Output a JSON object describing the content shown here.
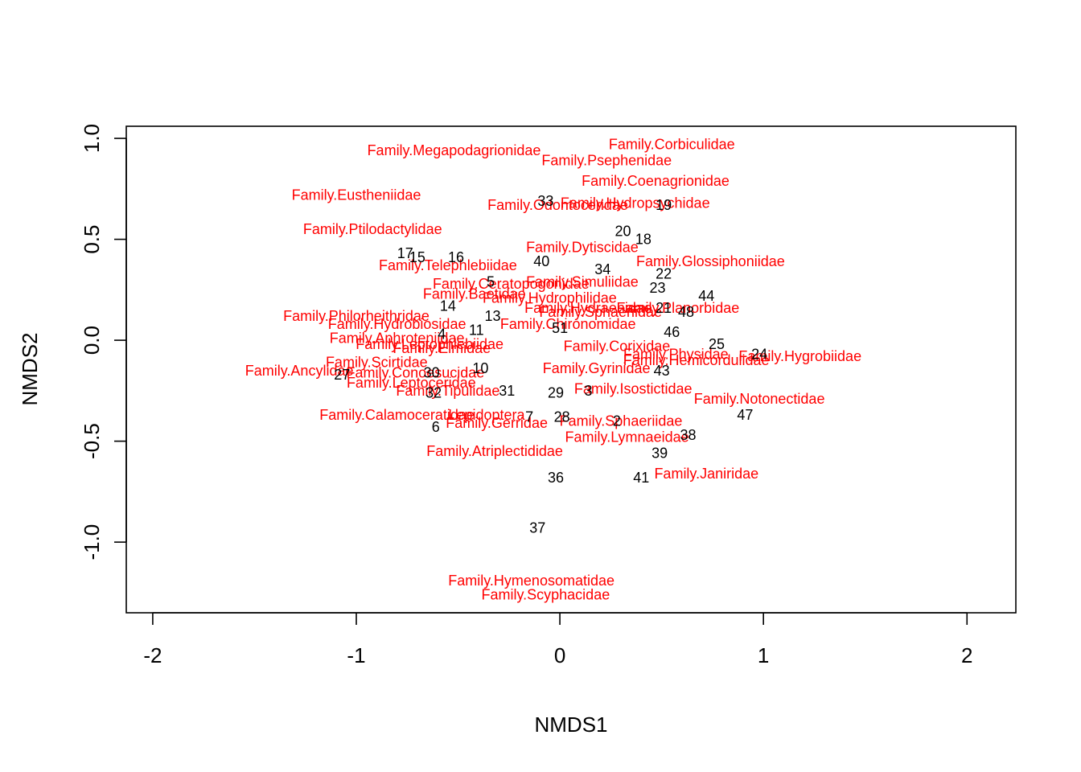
{
  "chart_data": {
    "type": "scatter",
    "title": "",
    "xlabel": "NMDS1",
    "ylabel": "NMDS2",
    "xlim": [
      -2.13,
      2.24
    ],
    "ylim": [
      -1.35,
      1.06
    ],
    "x_ticks": [
      -2,
      -1,
      0,
      1,
      2
    ],
    "y_ticks": [
      -1.0,
      -0.5,
      0.0,
      0.5,
      1.0
    ],
    "x_tick_labels": [
      "-2",
      "-1",
      "0",
      "1",
      "2"
    ],
    "y_tick_labels": [
      "-1.0",
      "-0.5",
      "0.0",
      "0.5",
      "1.0"
    ],
    "grid": false,
    "legend": "none",
    "species_color": "#ff0000",
    "site_color": "#000000",
    "sites": [
      {
        "label": "33",
        "x": -0.07,
        "y": 0.69
      },
      {
        "label": "19",
        "x": 0.51,
        "y": 0.67
      },
      {
        "label": "20",
        "x": 0.31,
        "y": 0.54
      },
      {
        "label": "18",
        "x": 0.41,
        "y": 0.5
      },
      {
        "label": "17",
        "x": -0.76,
        "y": 0.43
      },
      {
        "label": "15",
        "x": -0.7,
        "y": 0.41
      },
      {
        "label": "16",
        "x": -0.51,
        "y": 0.41
      },
      {
        "label": "40",
        "x": -0.09,
        "y": 0.39
      },
      {
        "label": "34",
        "x": 0.21,
        "y": 0.35
      },
      {
        "label": "22",
        "x": 0.51,
        "y": 0.33
      },
      {
        "label": "5",
        "x": -0.34,
        "y": 0.29
      },
      {
        "label": "23",
        "x": 0.48,
        "y": 0.26
      },
      {
        "label": "44",
        "x": 0.72,
        "y": 0.22
      },
      {
        "label": "14",
        "x": -0.55,
        "y": 0.17
      },
      {
        "label": "21",
        "x": 0.51,
        "y": 0.16
      },
      {
        "label": "48",
        "x": 0.62,
        "y": 0.14
      },
      {
        "label": "13",
        "x": -0.33,
        "y": 0.12
      },
      {
        "label": "51",
        "x": 0.0,
        "y": 0.06
      },
      {
        "label": "11",
        "x": -0.41,
        "y": 0.05
      },
      {
        "label": "46",
        "x": 0.55,
        "y": 0.04
      },
      {
        "label": "4",
        "x": -0.58,
        "y": 0.03
      },
      {
        "label": "25",
        "x": 0.77,
        "y": -0.02
      },
      {
        "label": "24",
        "x": 0.98,
        "y": -0.07
      },
      {
        "label": "10",
        "x": -0.39,
        "y": -0.14
      },
      {
        "label": "30",
        "x": -0.63,
        "y": -0.16
      },
      {
        "label": "43",
        "x": 0.5,
        "y": -0.15
      },
      {
        "label": "27",
        "x": -1.07,
        "y": -0.17
      },
      {
        "label": "29",
        "x": -0.02,
        "y": -0.26
      },
      {
        "label": "31",
        "x": -0.26,
        "y": -0.25
      },
      {
        "label": "32",
        "x": -0.62,
        "y": -0.26
      },
      {
        "label": "3",
        "x": 0.14,
        "y": -0.25
      },
      {
        "label": "47",
        "x": 0.91,
        "y": -0.37
      },
      {
        "label": "7",
        "x": -0.15,
        "y": -0.38
      },
      {
        "label": "28",
        "x": 0.01,
        "y": -0.38
      },
      {
        "label": "2",
        "x": 0.28,
        "y": -0.4
      },
      {
        "label": "6",
        "x": -0.61,
        "y": -0.43
      },
      {
        "label": "38",
        "x": 0.63,
        "y": -0.47
      },
      {
        "label": "39",
        "x": 0.49,
        "y": -0.56
      },
      {
        "label": "36",
        "x": -0.02,
        "y": -0.68
      },
      {
        "label": "41",
        "x": 0.4,
        "y": -0.68
      },
      {
        "label": "37",
        "x": -0.11,
        "y": -0.93
      }
    ],
    "species": [
      {
        "label": "Family.Megapodagrionidae",
        "x": -0.52,
        "y": 0.94
      },
      {
        "label": "Family.Corbiculidae",
        "x": 0.55,
        "y": 0.97
      },
      {
        "label": "Family.Psephenidae",
        "x": 0.23,
        "y": 0.89
      },
      {
        "label": "Family.Coenagrionidae",
        "x": 0.47,
        "y": 0.79
      },
      {
        "label": "Family.Eustheniidae",
        "x": -1.0,
        "y": 0.72
      },
      {
        "label": "Family.Hydropsychidae",
        "x": 0.37,
        "y": 0.68
      },
      {
        "label": "Family.Odontoceridae",
        "x": -0.01,
        "y": 0.67
      },
      {
        "label": "Family.Ptilodactylidae",
        "x": -0.92,
        "y": 0.55
      },
      {
        "label": "Family.Dytiscidae",
        "x": 0.11,
        "y": 0.46
      },
      {
        "label": "Family.Glossiphoniidae",
        "x": 0.74,
        "y": 0.39
      },
      {
        "label": "Family.Telephlebiidae",
        "x": -0.55,
        "y": 0.37
      },
      {
        "label": "Family.Simuliidae",
        "x": 0.11,
        "y": 0.29
      },
      {
        "label": "Family.Ceratopogonidae",
        "x": -0.24,
        "y": 0.28
      },
      {
        "label": "Family.Baetidae",
        "x": -0.42,
        "y": 0.23
      },
      {
        "label": "Family.Hydrophilidae",
        "x": -0.05,
        "y": 0.21
      },
      {
        "label": "Family.Planorbidae",
        "x": 0.58,
        "y": 0.16
      },
      {
        "label": "Family.Hydraenidae",
        "x": 0.14,
        "y": 0.16
      },
      {
        "label": "Family.Sphaeriidae",
        "x": 0.2,
        "y": 0.14
      },
      {
        "label": "Family.Philorheithridae",
        "x": -1.0,
        "y": 0.12
      },
      {
        "label": "Family.Hydrobiosidae",
        "x": -0.8,
        "y": 0.08
      },
      {
        "label": "Family.Chironomidae",
        "x": 0.04,
        "y": 0.08
      },
      {
        "label": "Family.Aphroteniidae",
        "x": -0.8,
        "y": 0.01
      },
      {
        "label": "Family.Leptophlebiidae",
        "x": -0.64,
        "y": -0.02
      },
      {
        "label": "Family.Elmidae",
        "x": -0.58,
        "y": -0.04
      },
      {
        "label": "Family.Corixidae",
        "x": 0.28,
        "y": -0.03
      },
      {
        "label": "Family.Physidae",
        "x": 0.57,
        "y": -0.07
      },
      {
        "label": "Family.Hemicordulidae",
        "x": 0.67,
        "y": -0.1
      },
      {
        "label": "Family.Hygrobiidae",
        "x": 1.18,
        "y": -0.08
      },
      {
        "label": "Family.Scirtidae",
        "x": -0.9,
        "y": -0.11
      },
      {
        "label": "Family.Gyrinidae",
        "x": 0.18,
        "y": -0.14
      },
      {
        "label": "Family.Ancylidae",
        "x": -1.28,
        "y": -0.15
      },
      {
        "label": "Family.Conoesucidae",
        "x": -0.71,
        "y": -0.16
      },
      {
        "label": "Family.Leptoceridae",
        "x": -0.73,
        "y": -0.21
      },
      {
        "label": "Family.Isostictidae",
        "x": 0.36,
        "y": -0.24
      },
      {
        "label": "Family.Tipulidae",
        "x": -0.55,
        "y": -0.25
      },
      {
        "label": "Family.Notonectidae",
        "x": 0.98,
        "y": -0.29
      },
      {
        "label": "Family.Calamoceratidae",
        "x": -0.8,
        "y": -0.37
      },
      {
        "label": "Lepidoptera",
        "x": -0.36,
        "y": -0.37
      },
      {
        "label": "Family.Gerridae",
        "x": -0.31,
        "y": -0.41
      },
      {
        "label": "Family.Sphaeriidae",
        "x": 0.3,
        "y": -0.4
      },
      {
        "label": "Family.Lymnaeidae",
        "x": 0.33,
        "y": -0.48
      },
      {
        "label": "Family.Atriplectididae",
        "x": -0.32,
        "y": -0.55
      },
      {
        "label": "Family.Janiridae",
        "x": 0.72,
        "y": -0.66
      },
      {
        "label": "Family.Hymenosomatidae",
        "x": -0.14,
        "y": -1.19
      },
      {
        "label": "Family.Scyphacidae",
        "x": -0.07,
        "y": -1.26
      }
    ]
  }
}
